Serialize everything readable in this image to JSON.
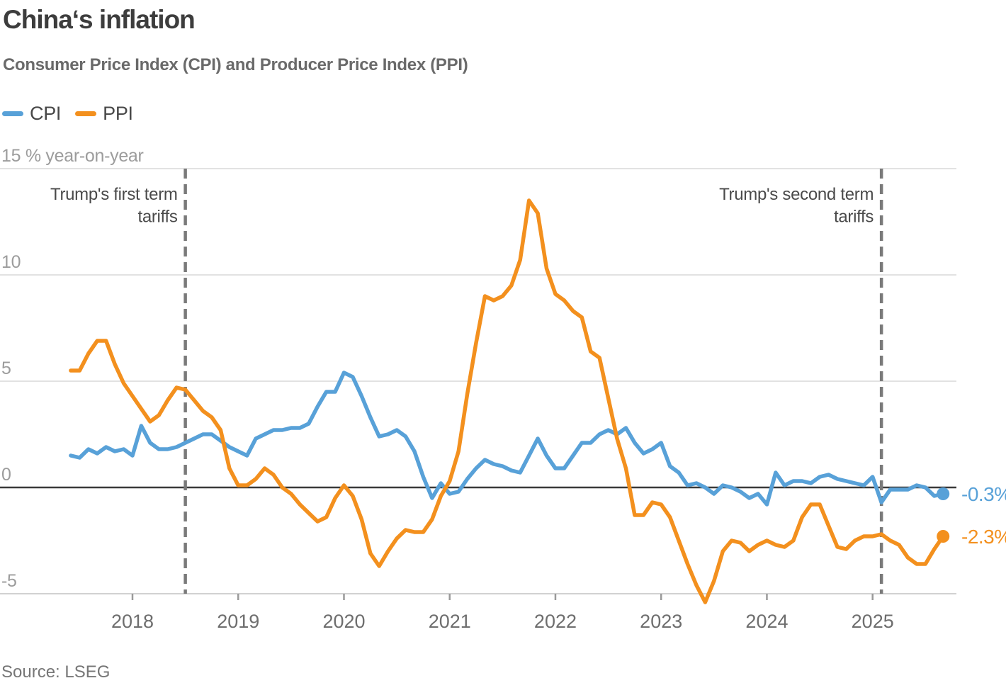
{
  "source": "Source: LSEG",
  "chart_data": {
    "type": "line",
    "title": "China‘s inflation",
    "subtitle": "Consumer Price Index (CPI) and Producer Price Index (PPI)",
    "legend_position": "top-left",
    "grid": "horizontal",
    "y_axis": {
      "unit_label": "15 % year-on-year",
      "ticks": [
        15,
        10,
        5,
        0,
        -5
      ],
      "tick_labels": [
        "15 % year-on-year",
        "10",
        "5",
        "0",
        "-5"
      ],
      "ylim": [
        -5.6,
        15
      ]
    },
    "x_axis": {
      "start_month": "2017-06",
      "end_month": "2025-09",
      "tick_labels": [
        "2018",
        "2019",
        "2020",
        "2021",
        "2022",
        "2023",
        "2024",
        "2025"
      ]
    },
    "annotations": [
      {
        "lines": [
          "Trump's first term",
          "tariffs"
        ],
        "month": "2018-07"
      },
      {
        "lines": [
          "Trump's second term",
          "tariffs"
        ],
        "month": "2025-02"
      }
    ],
    "series": [
      {
        "name": "CPI",
        "color": "#58A1D8",
        "end_label": "-0.3%",
        "end_value": -0.3,
        "monthly_values_from_2017_06": [
          1.5,
          1.4,
          1.8,
          1.6,
          1.9,
          1.7,
          1.8,
          1.5,
          2.9,
          2.1,
          1.8,
          1.8,
          1.9,
          2.1,
          2.3,
          2.5,
          2.5,
          2.2,
          1.9,
          1.7,
          1.5,
          2.3,
          2.5,
          2.7,
          2.7,
          2.8,
          2.8,
          3.0,
          3.8,
          4.5,
          4.5,
          5.4,
          5.2,
          4.3,
          3.3,
          2.4,
          2.5,
          2.7,
          2.4,
          1.7,
          0.5,
          -0.5,
          0.2,
          -0.3,
          -0.2,
          0.4,
          0.9,
          1.3,
          1.1,
          1.0,
          0.8,
          0.7,
          1.5,
          2.3,
          1.5,
          0.9,
          0.9,
          1.5,
          2.1,
          2.1,
          2.5,
          2.7,
          2.5,
          2.8,
          2.1,
          1.6,
          1.8,
          2.1,
          1.0,
          0.7,
          0.1,
          0.2,
          0.0,
          -0.3,
          0.1,
          0.0,
          -0.2,
          -0.5,
          -0.3,
          -0.8,
          0.7,
          0.1,
          0.3,
          0.3,
          0.2,
          0.5,
          0.6,
          0.4,
          0.3,
          0.2,
          0.1,
          0.5,
          -0.7,
          -0.1,
          -0.1,
          -0.1,
          0.1,
          0.0,
          -0.4,
          -0.3
        ]
      },
      {
        "name": "PPI",
        "color": "#F3901E",
        "end_label": "-2.3%",
        "end_value": -2.3,
        "monthly_values_from_2017_06": [
          5.5,
          5.5,
          6.3,
          6.9,
          6.9,
          5.8,
          4.9,
          4.3,
          3.7,
          3.1,
          3.4,
          4.1,
          4.7,
          4.6,
          4.1,
          3.6,
          3.3,
          2.7,
          0.9,
          0.1,
          0.1,
          0.4,
          0.9,
          0.6,
          0.0,
          -0.3,
          -0.8,
          -1.2,
          -1.6,
          -1.4,
          -0.5,
          0.1,
          -0.4,
          -1.5,
          -3.1,
          -3.7,
          -3.0,
          -2.4,
          -2.0,
          -2.1,
          -2.1,
          -1.5,
          -0.4,
          0.3,
          1.7,
          4.4,
          6.8,
          9.0,
          8.8,
          9.0,
          9.5,
          10.7,
          13.5,
          12.9,
          10.3,
          9.1,
          8.8,
          8.3,
          8.0,
          6.4,
          6.1,
          4.2,
          2.3,
          0.9,
          -1.3,
          -1.3,
          -0.7,
          -0.8,
          -1.4,
          -2.5,
          -3.6,
          -4.6,
          -5.4,
          -4.4,
          -3.0,
          -2.5,
          -2.6,
          -3.0,
          -2.7,
          -2.5,
          -2.7,
          -2.8,
          -2.5,
          -1.4,
          -0.8,
          -0.8,
          -1.8,
          -2.8,
          -2.9,
          -2.5,
          -2.3,
          -2.3,
          -2.2,
          -2.5,
          -2.7,
          -3.3,
          -3.6,
          -3.6,
          -2.9,
          -2.3
        ]
      }
    ]
  }
}
